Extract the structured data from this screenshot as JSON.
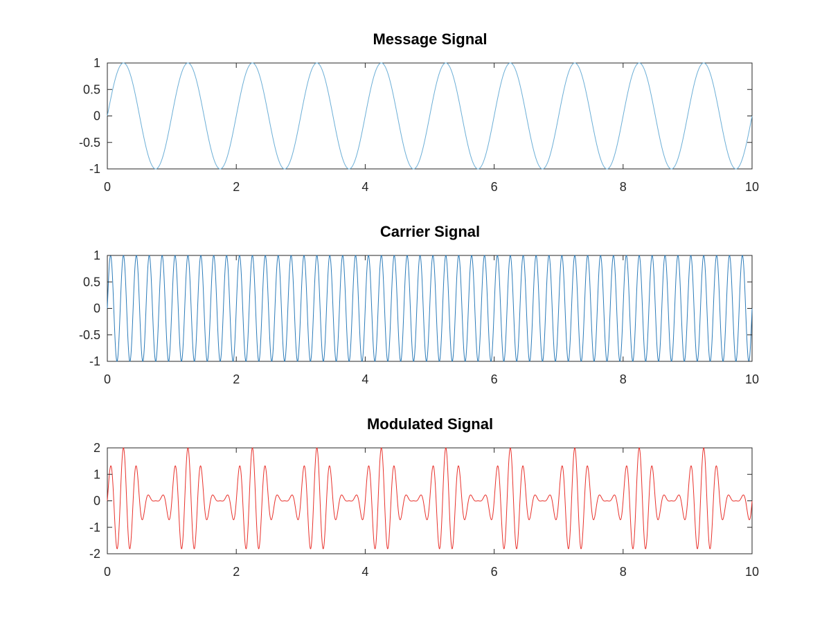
{
  "chart_data": [
    {
      "type": "line",
      "title": "Message Signal",
      "xlabel": "",
      "ylabel": "",
      "xlim": [
        0,
        10
      ],
      "ylim": [
        -1,
        1
      ],
      "xticks": [
        "0",
        "2",
        "4",
        "6",
        "8",
        "10"
      ],
      "yticks": [
        "-1",
        "-0.5",
        "0",
        "0.5",
        "1"
      ],
      "grid": false,
      "series": [
        {
          "color": "#6baed6",
          "formula": "sin(2*pi*1*t)",
          "frequency_hz": 1,
          "amplitude": 1,
          "x_start": 0,
          "x_end": 10
        }
      ]
    },
    {
      "type": "line",
      "title": "Carrier Signal",
      "xlabel": "",
      "ylabel": "",
      "xlim": [
        0,
        10
      ],
      "ylim": [
        -1,
        1
      ],
      "xticks": [
        "0",
        "2",
        "4",
        "6",
        "8",
        "10"
      ],
      "yticks": [
        "-1",
        "-0.5",
        "0",
        "0.5",
        "1"
      ],
      "grid": false,
      "series": [
        {
          "color": "#2b7bb9",
          "formula": "sin(2*pi*5*t)",
          "frequency_hz": 5,
          "amplitude": 1,
          "x_start": 0,
          "x_end": 10
        }
      ]
    },
    {
      "type": "line",
      "title": "Modulated Signal",
      "xlabel": "",
      "ylabel": "",
      "xlim": [
        0,
        10
      ],
      "ylim": [
        -2,
        2
      ],
      "xticks": [
        "0",
        "2",
        "4",
        "6",
        "8",
        "10"
      ],
      "yticks": [
        "-2",
        "-1",
        "0",
        "1",
        "2"
      ],
      "grid": false,
      "series": [
        {
          "color": "#e8302a",
          "formula": "(1+sin(2*pi*1*t))*sin(2*pi*5*t)",
          "message_frequency_hz": 1,
          "carrier_frequency_hz": 5,
          "x_start": 0,
          "x_end": 10
        }
      ]
    }
  ]
}
